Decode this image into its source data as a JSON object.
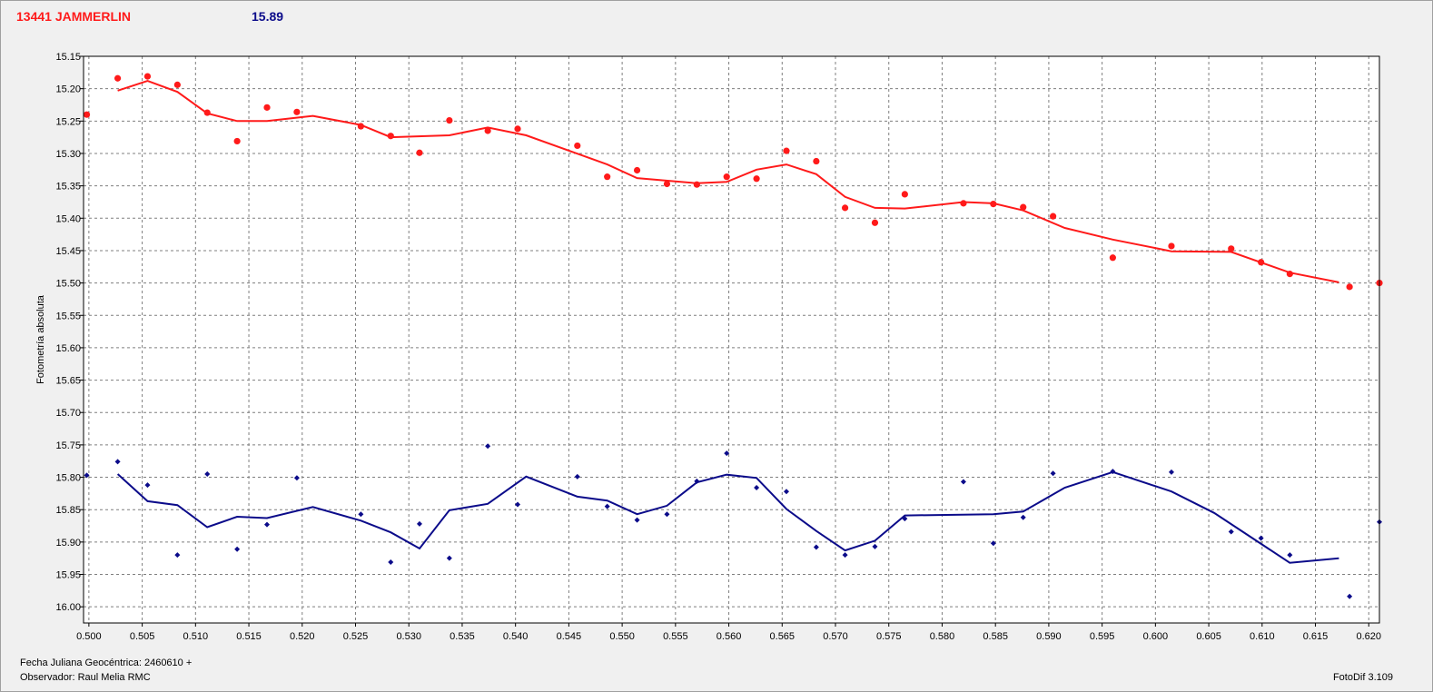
{
  "header": {
    "object_name": "13441 JAMMERLIN",
    "magnitude": "15.89",
    "object_color": "#ff1a1a",
    "magnitude_color": "#0b0b8a"
  },
  "footer": {
    "date_label": "Fecha Juliana Geocéntrica: 2460610 +",
    "observer": "Observador: Raul Melia RMC",
    "software": "FotoDif 3.109"
  },
  "chart_data": {
    "type": "scatter",
    "ylabel": "Fotometría absoluta",
    "xlabel": "",
    "xlim": [
      0.4995,
      0.621
    ],
    "ylim": [
      15.15,
      16.025
    ],
    "y_inverted": true,
    "grid": true,
    "x_ticks": [
      "0.500",
      "0.505",
      "0.510",
      "0.515",
      "0.520",
      "0.525",
      "0.530",
      "0.535",
      "0.540",
      "0.545",
      "0.550",
      "0.555",
      "0.560",
      "0.565",
      "0.570",
      "0.575",
      "0.580",
      "0.585",
      "0.590",
      "0.595",
      "0.600",
      "0.605",
      "0.610",
      "0.615",
      "0.620"
    ],
    "y_ticks": [
      "15.15",
      "15.20",
      "15.25",
      "15.30",
      "15.35",
      "15.40",
      "15.45",
      "15.50",
      "15.55",
      "15.60",
      "15.65",
      "15.70",
      "15.75",
      "15.80",
      "15.85",
      "15.90",
      "15.95",
      "16.00"
    ],
    "series": [
      {
        "color": "#ff1a1a",
        "marker": "circle",
        "points": [
          [
            0.4998,
            15.24
          ],
          [
            0.5027,
            15.184
          ],
          [
            0.5055,
            15.181
          ],
          [
            0.5083,
            15.194
          ],
          [
            0.5111,
            15.237
          ],
          [
            0.5139,
            15.281
          ],
          [
            0.5167,
            15.229
          ],
          [
            0.5195,
            15.236
          ],
          [
            0.5255,
            15.258
          ],
          [
            0.5283,
            15.273
          ],
          [
            0.531,
            15.299
          ],
          [
            0.5338,
            15.249
          ],
          [
            0.5374,
            15.265
          ],
          [
            0.5402,
            15.262
          ],
          [
            0.5458,
            15.288
          ],
          [
            0.5486,
            15.336
          ],
          [
            0.5514,
            15.326
          ],
          [
            0.5542,
            15.347
          ],
          [
            0.557,
            15.348
          ],
          [
            0.5598,
            15.336
          ],
          [
            0.5626,
            15.339
          ],
          [
            0.5654,
            15.296
          ],
          [
            0.5682,
            15.312
          ],
          [
            0.5709,
            15.384
          ],
          [
            0.5737,
            15.407
          ],
          [
            0.5765,
            15.363
          ],
          [
            0.582,
            15.377
          ],
          [
            0.5848,
            15.378
          ],
          [
            0.5876,
            15.383
          ],
          [
            0.5904,
            15.397
          ],
          [
            0.596,
            15.461
          ],
          [
            0.6015,
            15.443
          ],
          [
            0.6071,
            15.447
          ],
          [
            0.6099,
            15.468
          ],
          [
            0.6126,
            15.486
          ],
          [
            0.6182,
            15.506
          ],
          [
            0.621,
            15.5
          ]
        ],
        "trend": [
          [
            0.5027,
            15.203
          ],
          [
            0.5055,
            15.188
          ],
          [
            0.5083,
            15.205
          ],
          [
            0.5111,
            15.238
          ],
          [
            0.5139,
            15.25
          ],
          [
            0.5167,
            15.25
          ],
          [
            0.521,
            15.242
          ],
          [
            0.5255,
            15.256
          ],
          [
            0.5283,
            15.275
          ],
          [
            0.5338,
            15.272
          ],
          [
            0.5374,
            15.26
          ],
          [
            0.541,
            15.272
          ],
          [
            0.5486,
            15.317
          ],
          [
            0.5514,
            15.338
          ],
          [
            0.557,
            15.346
          ],
          [
            0.5598,
            15.344
          ],
          [
            0.5626,
            15.325
          ],
          [
            0.5654,
            15.317
          ],
          [
            0.5682,
            15.332
          ],
          [
            0.5709,
            15.367
          ],
          [
            0.5737,
            15.384
          ],
          [
            0.5765,
            15.385
          ],
          [
            0.582,
            15.375
          ],
          [
            0.5848,
            15.377
          ],
          [
            0.5876,
            15.388
          ],
          [
            0.5915,
            15.415
          ],
          [
            0.596,
            15.433
          ],
          [
            0.6015,
            15.451
          ],
          [
            0.6071,
            15.452
          ],
          [
            0.6126,
            15.484
          ],
          [
            0.6172,
            15.499
          ]
        ]
      },
      {
        "color": "#0b0b8a",
        "marker": "diamond",
        "points": [
          [
            0.4998,
            15.797
          ],
          [
            0.5027,
            15.776
          ],
          [
            0.5055,
            15.812
          ],
          [
            0.5083,
            15.92
          ],
          [
            0.5111,
            15.795
          ],
          [
            0.5139,
            15.911
          ],
          [
            0.5167,
            15.873
          ],
          [
            0.5195,
            15.801
          ],
          [
            0.5255,
            15.857
          ],
          [
            0.5283,
            15.931
          ],
          [
            0.531,
            15.872
          ],
          [
            0.5338,
            15.925
          ],
          [
            0.5374,
            15.752
          ],
          [
            0.5402,
            15.842
          ],
          [
            0.5458,
            15.799
          ],
          [
            0.5486,
            15.845
          ],
          [
            0.5514,
            15.866
          ],
          [
            0.5542,
            15.857
          ],
          [
            0.557,
            15.806
          ],
          [
            0.5598,
            15.763
          ],
          [
            0.5626,
            15.816
          ],
          [
            0.5654,
            15.822
          ],
          [
            0.5682,
            15.908
          ],
          [
            0.5709,
            15.92
          ],
          [
            0.5737,
            15.907
          ],
          [
            0.5765,
            15.864
          ],
          [
            0.582,
            15.807
          ],
          [
            0.5848,
            15.902
          ],
          [
            0.5876,
            15.862
          ],
          [
            0.5904,
            15.794
          ],
          [
            0.596,
            15.791
          ],
          [
            0.6015,
            15.792
          ],
          [
            0.6071,
            15.884
          ],
          [
            0.6099,
            15.894
          ],
          [
            0.6126,
            15.92
          ],
          [
            0.6182,
            15.984
          ],
          [
            0.621,
            15.869
          ]
        ],
        "trend": [
          [
            0.5027,
            15.795
          ],
          [
            0.5055,
            15.837
          ],
          [
            0.5083,
            15.843
          ],
          [
            0.5111,
            15.877
          ],
          [
            0.5139,
            15.861
          ],
          [
            0.5167,
            15.863
          ],
          [
            0.521,
            15.846
          ],
          [
            0.5255,
            15.867
          ],
          [
            0.5283,
            15.885
          ],
          [
            0.531,
            15.91
          ],
          [
            0.5338,
            15.851
          ],
          [
            0.5374,
            15.841
          ],
          [
            0.541,
            15.799
          ],
          [
            0.5458,
            15.83
          ],
          [
            0.5486,
            15.836
          ],
          [
            0.5514,
            15.857
          ],
          [
            0.5542,
            15.844
          ],
          [
            0.557,
            15.808
          ],
          [
            0.5598,
            15.796
          ],
          [
            0.5626,
            15.801
          ],
          [
            0.5654,
            15.849
          ],
          [
            0.5682,
            15.883
          ],
          [
            0.5709,
            15.913
          ],
          [
            0.5737,
            15.898
          ],
          [
            0.5765,
            15.859
          ],
          [
            0.5848,
            15.857
          ],
          [
            0.5876,
            15.853
          ],
          [
            0.5915,
            15.816
          ],
          [
            0.596,
            15.792
          ],
          [
            0.6015,
            15.822
          ],
          [
            0.6055,
            15.855
          ],
          [
            0.6126,
            15.932
          ],
          [
            0.6172,
            15.925
          ]
        ]
      }
    ]
  }
}
